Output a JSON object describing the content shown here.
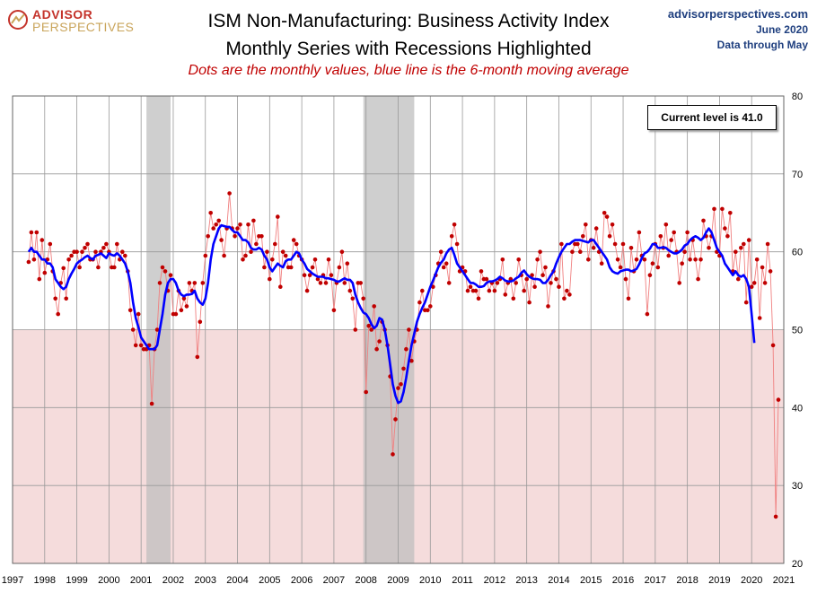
{
  "header": {
    "title_line1": "ISM Non-Manufacturing: Business Activity Index",
    "title_line2": "Monthly Series with Recessions Highlighted",
    "subtitle": "Dots are the monthly values, blue line is the 6-month moving average",
    "site": "advisorperspectives.com",
    "date_line1": "June 2020",
    "date_line2": "Data through May",
    "logo_line1": "ADVISOR",
    "logo_line2": "PERSPECTIVES"
  },
  "callout": "Current level is 41.0",
  "colors": {
    "dots": "#c00000",
    "monthly_line": "#f08080",
    "moving_average": "#0000ff",
    "recession_band": "#bfbfbf",
    "below_50_shading": "#f5dcdc",
    "grid": "#999999"
  },
  "chart_data": {
    "type": "line",
    "title": "ISM Non-Manufacturing: Business Activity Index",
    "xlim": [
      1997,
      2021
    ],
    "ylim": [
      20,
      80
    ],
    "x_ticks": [
      "1997",
      "1998",
      "1999",
      "2000",
      "2001",
      "2002",
      "2003",
      "2004",
      "2005",
      "2006",
      "2007",
      "2008",
      "2009",
      "2010",
      "2011",
      "2012",
      "2013",
      "2014",
      "2015",
      "2016",
      "2017",
      "2018",
      "2019",
      "2020",
      "2021"
    ],
    "y_ticks": [
      20,
      30,
      40,
      50,
      60,
      70,
      80
    ],
    "y_axis_position": "right",
    "grid": true,
    "shaded_below": 50,
    "recessions": [
      {
        "start": "2001-03",
        "end": "2001-11"
      },
      {
        "start": "2007-12",
        "end": "2009-06"
      }
    ],
    "series": [
      {
        "kind": "monthly_values",
        "start": "1997-07",
        "values": [
          58.7,
          62.5,
          59,
          62.5,
          56.5,
          61.5,
          57.3,
          59,
          61,
          57.5,
          54,
          52,
          56,
          57.9,
          54,
          59,
          59.5,
          60,
          60,
          58,
          60,
          60.5,
          61,
          59,
          59,
          60,
          58,
          60,
          60.5,
          61,
          60,
          58,
          58,
          61,
          59,
          60,
          59.5,
          57.5,
          52.5,
          50,
          48,
          52,
          48,
          47.5,
          47.5,
          48,
          40.5,
          47.5,
          50,
          56,
          58,
          57.5,
          55,
          57,
          52,
          52,
          55,
          52.5,
          54,
          53,
          56,
          55,
          56,
          46.5,
          51,
          56,
          59.5,
          62,
          65,
          63,
          63.5,
          64,
          61.5,
          59.5,
          63,
          67.5,
          63,
          62,
          63,
          63.5,
          59,
          59.5,
          63.5,
          60,
          64,
          61,
          62,
          62,
          58,
          60,
          56.5,
          59,
          61,
          64.5,
          55.5,
          60,
          59.5,
          58,
          58,
          61.5,
          61,
          59.5,
          59,
          57,
          55,
          57,
          58,
          59,
          56.5,
          56,
          57,
          56,
          59,
          57,
          52.5,
          56,
          58,
          60,
          56,
          58.5,
          55,
          54,
          50,
          56,
          56,
          54,
          42,
          50.5,
          50,
          53,
          47.5,
          48.5,
          51,
          50,
          48,
          44,
          34,
          38.5,
          42.5,
          43,
          45,
          47.5,
          50,
          46,
          48.5,
          50,
          53.5,
          55,
          52.5,
          52.5,
          53,
          55.5,
          57,
          58.5,
          60,
          58,
          58.5,
          56,
          62,
          63.5,
          61,
          57.5,
          58,
          57.5,
          55,
          55.5,
          55,
          55,
          54,
          57.5,
          56.5,
          56.5,
          55,
          56,
          55,
          56,
          56.5,
          59,
          54.5,
          56,
          56.5,
          54,
          56,
          59,
          57,
          55,
          56.5,
          53.5,
          57,
          55.5,
          59,
          60,
          57,
          58,
          53,
          56,
          57.5,
          56.5,
          55.5,
          61,
          54,
          55,
          54.5,
          60,
          61,
          61,
          60,
          62,
          63.5,
          59,
          61.5,
          60.5,
          63,
          60,
          58.5,
          65,
          64.5,
          62,
          63.5,
          61,
          59,
          58,
          61,
          56.5,
          54,
          60.5,
          57.5,
          59,
          62.5,
          59.5,
          59,
          52,
          57,
          58.5,
          61,
          58,
          62,
          60.5,
          63.5,
          59.5,
          61.5,
          62.5,
          60,
          56,
          58.5,
          60,
          62.5,
          59,
          61.5,
          59,
          56.5,
          59,
          64,
          62,
          60.5,
          62,
          65.5,
          60,
          59.5,
          65.5,
          63,
          62,
          65,
          57.5,
          60,
          56.5,
          60.5,
          61,
          53.5,
          61.5,
          55.5,
          56,
          59,
          51.5,
          58,
          56,
          61,
          57.5,
          48,
          26,
          41
        ]
      },
      {
        "kind": "six_month_moving_average",
        "start": "1997-07",
        "values": [
          60,
          60.5,
          60,
          60,
          59.5,
          59,
          59,
          58.5,
          58.5,
          58,
          56.5,
          56,
          55.5,
          55.2,
          55.5,
          56.5,
          57.2,
          57.8,
          58.5,
          58.8,
          59,
          59.3,
          59.5,
          59.2,
          59,
          59.5,
          59.6,
          59.8,
          59.5,
          59.2,
          59.8,
          59.6,
          59.5,
          59.8,
          59.5,
          59,
          58.5,
          57.5,
          56,
          53.5,
          51.5,
          50.3,
          49,
          48.5,
          48,
          47.5,
          47.5,
          47.5,
          48,
          50,
          52,
          54.5,
          56,
          56.5,
          56.5,
          56,
          55,
          54.5,
          54.3,
          54.5,
          54.5,
          54.6,
          55,
          54,
          53.5,
          53.2,
          54,
          56,
          59,
          61,
          62,
          63,
          63.4,
          63.3,
          63.2,
          63.2,
          62.8,
          62.5,
          62.5,
          62,
          61.5,
          61.5,
          61.2,
          60.5,
          60.3,
          60.3,
          60.5,
          60.3,
          59.5,
          59,
          58,
          57.5,
          58,
          58.5,
          58.2,
          58,
          58.8,
          59,
          59,
          59.5,
          60,
          59.8,
          59,
          58.5,
          57.8,
          57.5,
          57.2,
          57,
          56.8,
          56.8,
          56.8,
          56.6,
          56.6,
          56.5,
          56.4,
          56.2,
          56.2,
          56.4,
          56.6,
          56.4,
          56.4,
          56,
          54.5,
          53.5,
          52.8,
          52.2,
          52,
          51.5,
          50.7,
          50.2,
          50.5,
          51.5,
          51.3,
          50,
          48,
          45.5,
          43,
          41.5,
          40.6,
          40.8,
          42,
          43.8,
          46,
          48,
          49.5,
          51,
          52,
          52.8,
          53.5,
          54.5,
          55.5,
          56.3,
          57.2,
          58,
          58.6,
          59,
          59.8,
          60.3,
          60.5,
          59.6,
          58.5,
          58,
          57.5,
          57,
          56.5,
          56,
          56,
          55.8,
          55.5,
          55.5,
          55.6,
          56,
          56.2,
          56.2,
          56.3,
          56.5,
          56.8,
          56.6,
          56.3,
          56.2,
          56.2,
          56.3,
          56.6,
          56.8,
          57.3,
          57.6,
          57.1,
          56.8,
          56.6,
          56.5,
          56.5,
          56.4,
          56,
          56,
          56.4,
          57,
          57.5,
          58.5,
          59.3,
          60,
          60.5,
          61,
          61,
          61.3,
          61.5,
          61.5,
          61.5,
          61.4,
          61.3,
          61.2,
          61.5,
          61.5,
          61,
          60.5,
          60,
          59.5,
          59,
          58,
          57.5,
          57.3,
          57.2,
          57.5,
          57.6,
          57.7,
          57.7,
          57.5,
          57.6,
          57.8,
          58.4,
          59.2,
          59.8,
          60,
          60.4,
          61,
          61,
          60.5,
          60.5,
          60.6,
          60.5,
          60.2,
          60,
          59.8,
          59.8,
          60,
          60.3,
          60.8,
          61,
          61.5,
          61.8,
          62,
          61.8,
          61.5,
          61.8,
          62.5,
          63,
          62.5,
          61.5,
          60.5,
          60,
          59.5,
          58.5,
          58,
          57.5,
          57,
          57.5,
          57,
          56.8,
          57,
          56.5,
          55.5,
          52,
          48.3
        ]
      }
    ]
  }
}
